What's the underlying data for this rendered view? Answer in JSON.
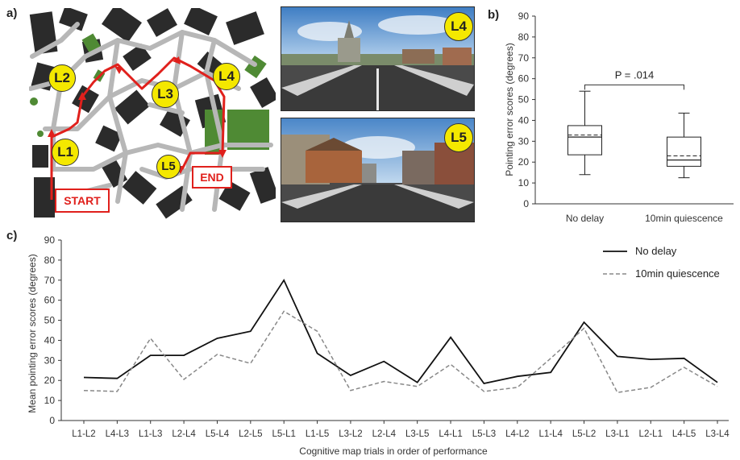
{
  "panels": {
    "a": "a)",
    "b": "b)",
    "c": "c)"
  },
  "map": {
    "landmarks": [
      "L1",
      "L2",
      "L3",
      "L4",
      "L5"
    ],
    "start_label": "START",
    "end_label": "END"
  },
  "photos": [
    {
      "badge": "L4"
    },
    {
      "badge": "L5"
    }
  ],
  "colors": {
    "route": "#e0201c",
    "badge": "#f4e800",
    "no_delay": "#111111",
    "quiescence": "#888888"
  },
  "chart_data": [
    {
      "type": "box",
      "ylabel": "Pointing error  scores (degrees)",
      "ylim": [
        0,
        90
      ],
      "yticks": [
        0,
        10,
        20,
        30,
        40,
        50,
        60,
        70,
        80,
        90
      ],
      "categories": [
        "No delay",
        "10min quiescence"
      ],
      "boxes": [
        {
          "min": 14,
          "q1": 23.5,
          "median": 32,
          "mean": 33,
          "q3": 37.5,
          "max": 54
        },
        {
          "min": 12.5,
          "q1": 18,
          "median": 21,
          "mean": 23,
          "q3": 32,
          "max": 43.5
        }
      ],
      "annotation": "P = .014",
      "grid": false
    },
    {
      "type": "line",
      "xlabel": "Cognitive map trials in order of performance",
      "ylabel": "Mean pointing error scores (degrees)",
      "ylim": [
        0,
        90
      ],
      "yticks": [
        0,
        10,
        20,
        30,
        40,
        50,
        60,
        70,
        80,
        90
      ],
      "categories": [
        "L1-L2",
        "L4-L3",
        "L1-L3",
        "L2-L4",
        "L5-L4",
        "L2-L5",
        "L5-L1",
        "L1-L5",
        "L3-L2",
        "L2-L4",
        "L3-L5",
        "L4-L1",
        "L5-L3",
        "L4-L2",
        "L1-L4",
        "L5-L2",
        "L3-L1",
        "L2-L1",
        "L4-L5",
        "L3-L4"
      ],
      "series": [
        {
          "name": "No delay",
          "values": [
            21.5,
            21,
            32.5,
            32.5,
            41,
            44.5,
            70,
            33.5,
            22.5,
            29.5,
            19,
            41.5,
            18.5,
            22,
            24,
            49,
            32,
            30.5,
            31,
            19
          ]
        },
        {
          "name": "10min quiescence",
          "values": [
            15,
            14.5,
            41,
            20.5,
            33,
            28.5,
            54.5,
            44.5,
            15,
            19.5,
            17,
            28,
            14.5,
            16.5,
            31,
            46,
            14,
            16.5,
            26.5,
            17
          ]
        }
      ],
      "legend": "top-right",
      "grid": false
    }
  ]
}
